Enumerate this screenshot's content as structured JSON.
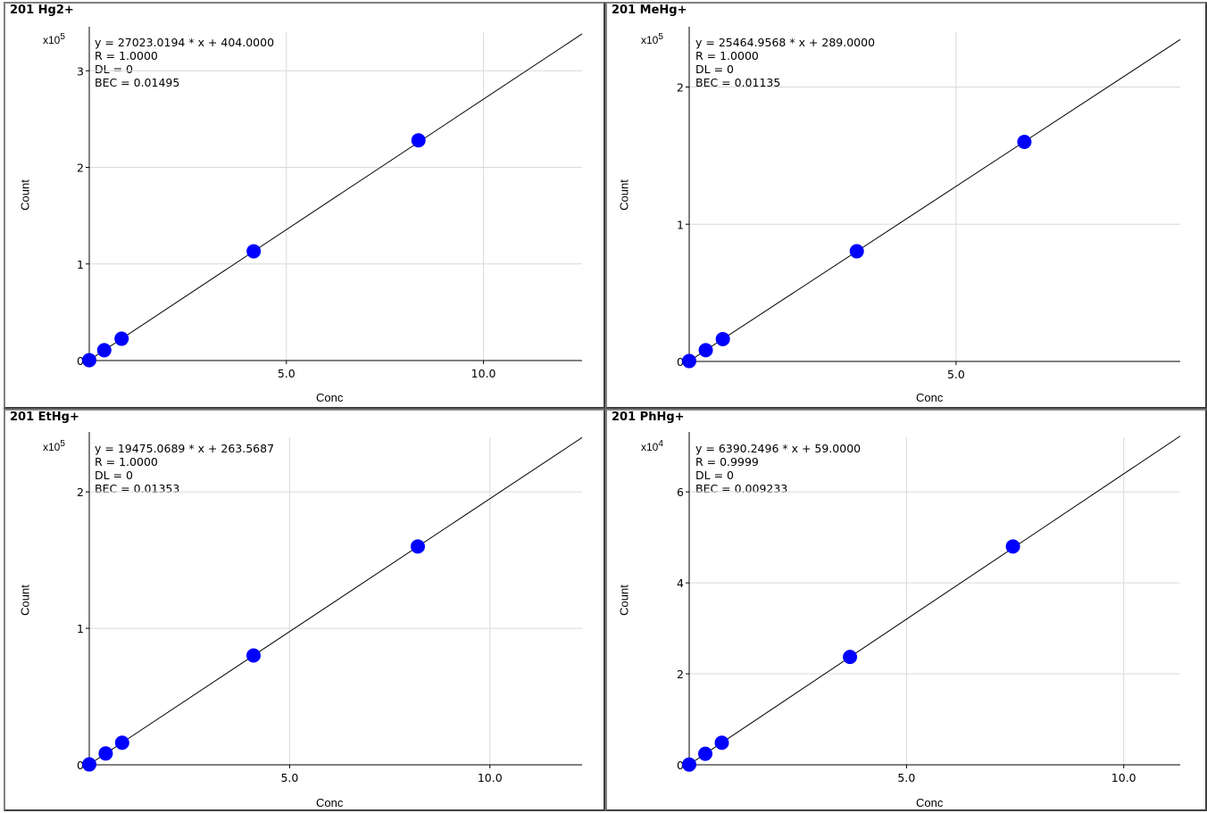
{
  "chart_data": [
    {
      "type": "scatter",
      "title": "201 Hg2+",
      "multiplier": {
        "base": "x10",
        "exp": "5"
      },
      "xlabel": "Conc",
      "ylabel": "Count",
      "xlim": [
        0,
        12.5
      ],
      "ylim": [
        0,
        3.4
      ],
      "xticks": [
        {
          "v": 5,
          "label": "5.0"
        },
        {
          "v": 10,
          "label": "10.0"
        }
      ],
      "yticks": [
        {
          "v": 0,
          "label": "0"
        },
        {
          "v": 1,
          "label": "1"
        },
        {
          "v": 2,
          "label": "2"
        },
        {
          "v": 3,
          "label": "3"
        }
      ],
      "annotations": [
        "y = 27023.0194 * x  + 404.0000",
        "R = 1.0000",
        "DL = 0",
        "BEC = 0.01495"
      ],
      "fit": {
        "slope": 0.270230194,
        "intercept": 0.00404
      },
      "x": [
        0,
        0.38,
        0.82,
        4.17,
        8.35
      ],
      "y": [
        0.004,
        0.107,
        0.226,
        1.131,
        2.28
      ],
      "grid": true,
      "marker_color": "#0000ff"
    },
    {
      "type": "scatter",
      "title": "201 MeHg+",
      "multiplier": {
        "base": "x10",
        "exp": "5"
      },
      "xlabel": "Conc",
      "ylabel": "Count",
      "xlim": [
        0,
        9.2
      ],
      "ylim": [
        0,
        2.4
      ],
      "xticks": [
        {
          "v": 5,
          "label": "5.0"
        }
      ],
      "yticks": [
        {
          "v": 0,
          "label": "0"
        },
        {
          "v": 1,
          "label": "1"
        },
        {
          "v": 2,
          "label": "2"
        }
      ],
      "annotations": [
        "y = 25464.9568 * x  + 289.0000",
        "R = 1.0000",
        "DL = 0",
        "BEC = 0.01135"
      ],
      "fit": {
        "slope": 0.254649568,
        "intercept": 0.00289
      },
      "x": [
        0,
        0.31,
        0.63,
        3.14,
        6.28
      ],
      "y": [
        0.003,
        0.082,
        0.163,
        0.803,
        1.6
      ],
      "grid": true,
      "marker_color": "#0000ff"
    },
    {
      "type": "scatter",
      "title": "201 EtHg+",
      "multiplier": {
        "base": "x10",
        "exp": "5"
      },
      "xlabel": "Conc",
      "ylabel": "Count",
      "xlim": [
        0,
        12.3
      ],
      "ylim": [
        0,
        2.4
      ],
      "xticks": [
        {
          "v": 5,
          "label": "5.0"
        },
        {
          "v": 10,
          "label": "10.0"
        }
      ],
      "yticks": [
        {
          "v": 0,
          "label": "0"
        },
        {
          "v": 1,
          "label": "1"
        },
        {
          "v": 2,
          "label": "2"
        }
      ],
      "annotations": [
        "y = 19475.0689 * x  + 263.5687",
        "R = 1.0000",
        "DL = 0",
        "BEC = 0.01353"
      ],
      "fit": {
        "slope": 0.194750689,
        "intercept": 0.002636
      },
      "x": [
        0,
        0.41,
        0.82,
        4.1,
        8.2
      ],
      "y": [
        0.003,
        0.083,
        0.162,
        0.801,
        1.6
      ],
      "grid": true,
      "marker_color": "#0000ff"
    },
    {
      "type": "scatter",
      "title": "201 PhHg+",
      "multiplier": {
        "base": "x10",
        "exp": "4"
      },
      "xlabel": "Conc",
      "ylabel": "Count",
      "xlim": [
        0,
        11.3
      ],
      "ylim": [
        0,
        7.2
      ],
      "xticks": [
        {
          "v": 5,
          "label": "5.0"
        },
        {
          "v": 10,
          "label": "10.0"
        }
      ],
      "yticks": [
        {
          "v": 0,
          "label": "0"
        },
        {
          "v": 2,
          "label": "2"
        },
        {
          "v": 4,
          "label": "4"
        },
        {
          "v": 6,
          "label": "6"
        }
      ],
      "annotations": [
        "y = 6390.2496 * x  + 59.0000",
        "R = 0.9999",
        "DL = 0",
        "BEC = 0.009233"
      ],
      "fit": {
        "slope": 0.63902496,
        "intercept": 0.0059
      },
      "x": [
        0,
        0.37,
        0.75,
        3.7,
        7.45
      ],
      "y": [
        0.006,
        0.243,
        0.485,
        2.371,
        4.8
      ],
      "grid": true,
      "marker_color": "#0000ff"
    }
  ]
}
